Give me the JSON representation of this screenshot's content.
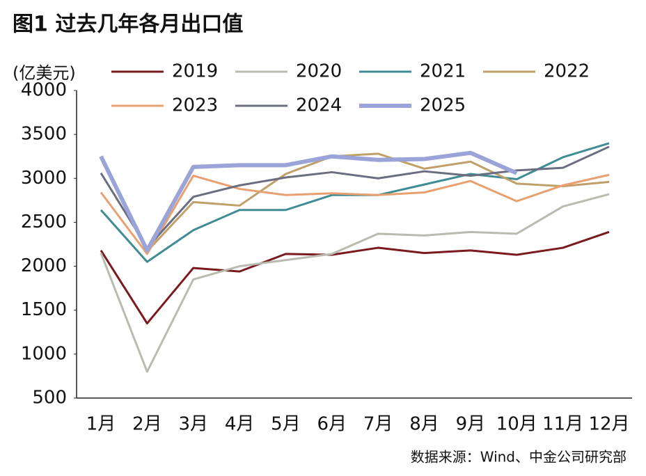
{
  "chart_data": {
    "type": "line",
    "title": "图1 过去几年各月出口值",
    "y_label": "(亿美元)",
    "source": "数据来源：Wind、中金公司研究部",
    "categories": [
      "1月",
      "2月",
      "3月",
      "4月",
      "5月",
      "6月",
      "7月",
      "8月",
      "9月",
      "10月",
      "11月",
      "12月"
    ],
    "ylim": [
      500,
      4000
    ],
    "yticks": [
      500,
      1000,
      1500,
      2000,
      2500,
      3000,
      3500,
      4000
    ],
    "grid": false,
    "legend": "top",
    "series": [
      {
        "name": "2019",
        "color": "#7a1a1e",
        "values": [
          2180,
          1350,
          1980,
          1940,
          2140,
          2130,
          2210,
          2150,
          2180,
          2130,
          2210,
          2390
        ]
      },
      {
        "name": "2020",
        "color": "#b8bcb0",
        "values": [
          2150,
          800,
          1850,
          2000,
          2070,
          2140,
          2370,
          2350,
          2390,
          2370,
          2680,
          2820
        ]
      },
      {
        "name": "2021",
        "color": "#3f8c94",
        "values": [
          2640,
          2050,
          2410,
          2640,
          2640,
          2810,
          2810,
          2930,
          3050,
          2990,
          3240,
          3400
        ]
      },
      {
        "name": "2022",
        "color": "#c0a068",
        "values": [
          3250,
          2170,
          2730,
          2690,
          3050,
          3250,
          3280,
          3110,
          3190,
          2940,
          2910,
          2960
        ]
      },
      {
        "name": "2023",
        "color": "#e8a070",
        "values": [
          2840,
          2140,
          3030,
          2880,
          2810,
          2830,
          2810,
          2840,
          2970,
          2740,
          2920,
          3040
        ]
      },
      {
        "name": "2024",
        "color": "#6a6e80",
        "values": [
          3060,
          2210,
          2790,
          2920,
          3010,
          3070,
          3000,
          3080,
          3030,
          3090,
          3120,
          3360
        ]
      },
      {
        "name": "2025",
        "color": "#9aa4d8",
        "values": [
          3250,
          2180,
          3130,
          3150,
          3150,
          3250,
          3210,
          3220,
          3290,
          3060,
          null,
          null
        ]
      }
    ]
  }
}
